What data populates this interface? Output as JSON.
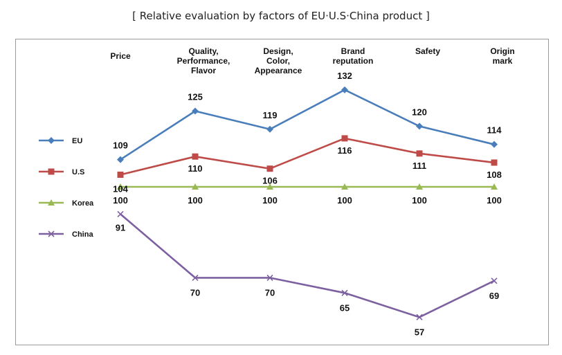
{
  "title": "[ Relative evaluation by factors of EU·U.S·China product ]",
  "chart_data": {
    "type": "line",
    "categories": [
      [
        "Price"
      ],
      [
        "Quality,",
        "Performance,",
        "Flavor"
      ],
      [
        "Design,",
        "Color,",
        "Appearance"
      ],
      [
        "Brand",
        "reputation"
      ],
      [
        "Safety"
      ],
      [
        "Origin",
        "mark"
      ]
    ],
    "series": [
      {
        "name": "EU",
        "values": [
          109,
          125,
          119,
          132,
          120,
          114
        ],
        "color": "#4a7ebb",
        "marker": "diamond"
      },
      {
        "name": "U.S",
        "values": [
          104,
          110,
          106,
          116,
          111,
          108
        ],
        "color": "#be4b48",
        "marker": "square"
      },
      {
        "name": "Korea",
        "values": [
          100,
          100,
          100,
          100,
          100,
          100
        ],
        "color": "#98b954",
        "marker": "triangle"
      },
      {
        "name": "China",
        "values": [
          91,
          70,
          70,
          65,
          57,
          69
        ],
        "color": "#7d60a0",
        "marker": "x"
      }
    ],
    "ylim": [
      50,
      140
    ],
    "grid": false,
    "legend_position": "left"
  }
}
